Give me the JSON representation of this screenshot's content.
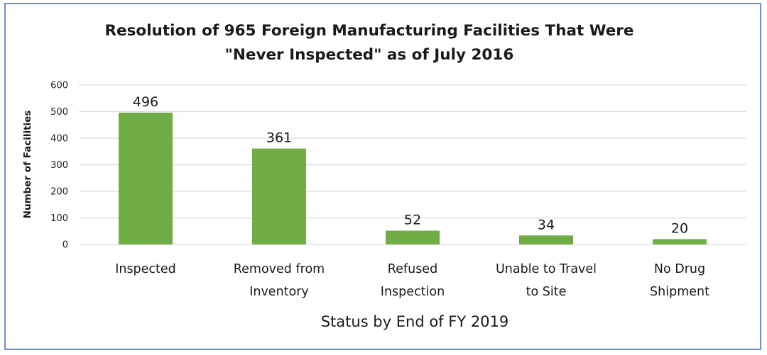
{
  "chart_data": {
    "type": "bar",
    "title": "Resolution of 965 Foreign Manufacturing Facilities That Were \"Never Inspected\" as of July 2016",
    "title_lines": [
      "Resolution of 965 Foreign Manufacturing Facilities That Were",
      "\"Never Inspected\" as of July 2016"
    ],
    "xlabel": "Status by End of FY 2019",
    "ylabel": "Number of Facilities",
    "categories": [
      "Inspected",
      "Removed from Inventory",
      "Refused Inspection",
      "Unable to Travel to Site",
      "No Drug Shipment"
    ],
    "category_lines": [
      [
        "Inspected"
      ],
      [
        "Removed from",
        "Inventory"
      ],
      [
        "Refused",
        "Inspection"
      ],
      [
        "Unable to Travel",
        "to Site"
      ],
      [
        "No Drug",
        "Shipment"
      ]
    ],
    "values": [
      496,
      361,
      52,
      34,
      20
    ],
    "ylim": [
      0,
      600
    ],
    "yticks": [
      0,
      100,
      200,
      300,
      400,
      500,
      600
    ],
    "grid": true,
    "legend": "none",
    "bar_color": "#70ad47",
    "grid_color": "#d9d9d9"
  }
}
